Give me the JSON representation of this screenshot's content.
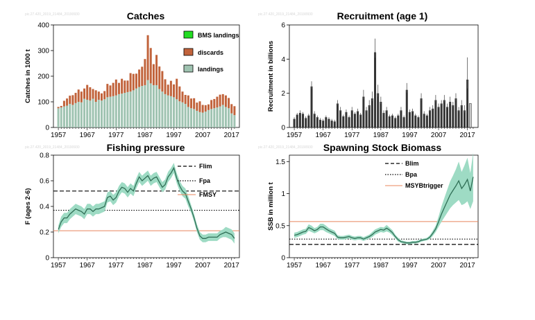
{
  "colors": {
    "landings": "#9fc3b1",
    "discards": "#c1633b",
    "bms": "#22dd22",
    "recruitment": "#333333",
    "band": "#9edbc4",
    "line": "#2f6e55",
    "msy": "#e8845b"
  },
  "watermarks": [
    "pic.27.420_2019_21484_20190930",
    "pic.27.420_2019_21484_20190930",
    "pic.27.420_2019_21484_20190930",
    "pic.27.420_2019_21484_20190930"
  ],
  "chart_data": [
    {
      "id": "catches",
      "type": "bar",
      "stacked": true,
      "title": "Catches",
      "ylabel": "Catches in 1000 t",
      "xlabel": "",
      "ylim": [
        0,
        400
      ],
      "yticks": [
        0,
        100,
        200,
        300,
        400
      ],
      "xticks": [
        1957,
        1967,
        1977,
        1987,
        1997,
        2007,
        2017
      ],
      "x_start": 1957,
      "x_end": 2018,
      "legend_position": "top-right",
      "series": [
        {
          "name": "BMS landings",
          "color_key": "bms",
          "values": [
            0,
            0,
            0,
            0,
            0,
            0,
            0,
            0,
            0,
            0,
            0,
            0,
            0,
            0,
            0,
            0,
            0,
            0,
            0,
            0,
            0,
            0,
            0,
            0,
            0,
            0,
            0,
            0,
            0,
            0,
            0,
            0,
            0,
            0,
            0,
            0,
            0,
            0,
            0,
            0,
            0,
            0,
            0,
            0,
            0,
            0,
            0,
            0,
            0,
            0,
            0,
            0,
            0,
            0,
            0,
            0,
            0,
            0,
            0,
            0,
            0,
            0
          ]
        },
        {
          "name": "discards",
          "color_key": "discards",
          "values": [
            5,
            6,
            22,
            28,
            32,
            38,
            40,
            48,
            42,
            40,
            58,
            52,
            38,
            45,
            32,
            28,
            32,
            52,
            44,
            52,
            62,
            44,
            58,
            48,
            45,
            72,
            64,
            58,
            68,
            75,
            102,
            175,
            138,
            82,
            118,
            88,
            80,
            58,
            42,
            60,
            50,
            80,
            58,
            42,
            35,
            45,
            38,
            42,
            32,
            42,
            30,
            25,
            22,
            35,
            36,
            42,
            46,
            42,
            45,
            40,
            36,
            35
          ]
        },
        {
          "name": "landings",
          "color_key": "landings",
          "values": [
            75,
            78,
            82,
            85,
            92,
            88,
            95,
            100,
            98,
            112,
            108,
            105,
            112,
            100,
            108,
            105,
            110,
            118,
            120,
            122,
            125,
            130,
            132,
            135,
            138,
            140,
            145,
            152,
            158,
            162,
            165,
            185,
            172,
            165,
            165,
            150,
            140,
            130,
            125,
            122,
            118,
            110,
            102,
            98,
            92,
            80,
            75,
            72,
            65,
            60,
            58,
            62,
            68,
            72,
            75,
            78,
            82,
            88,
            80,
            75,
            55,
            48
          ]
        }
      ]
    },
    {
      "id": "recruitment",
      "type": "bar",
      "title": "Recruitment (age 1)",
      "ylabel": "Recruitment in billions",
      "xlabel": "",
      "ylim": [
        0,
        6
      ],
      "yticks": [
        0,
        2,
        4,
        6
      ],
      "xticks": [
        1957,
        1967,
        1977,
        1987,
        1997,
        2007,
        2017
      ],
      "x_start": 1957,
      "x_end": 2019,
      "last_bar_light": true,
      "values": [
        0.5,
        0.75,
        0.85,
        0.8,
        0.55,
        0.7,
        2.4,
        0.8,
        0.6,
        0.45,
        0.4,
        0.6,
        0.5,
        0.4,
        0.35,
        1.4,
        1.0,
        0.65,
        0.9,
        0.6,
        1.0,
        0.8,
        0.95,
        0.75,
        1.8,
        1.0,
        1.3,
        1.7,
        4.4,
        2.0,
        1.5,
        0.85,
        1.0,
        0.65,
        0.7,
        0.55,
        0.7,
        1.0,
        0.6,
        2.2,
        0.9,
        0.95,
        0.7,
        0.6,
        1.7,
        0.8,
        0.7,
        1.0,
        1.1,
        1.6,
        1.2,
        1.4,
        1.6,
        1.2,
        1.5,
        1.3,
        1.7,
        1.0,
        1.3,
        1.0,
        2.8,
        1.4
      ],
      "errors": [
        0.1,
        0.1,
        0.15,
        0.1,
        0.1,
        0.1,
        0.3,
        0.15,
        0.1,
        0.1,
        0.1,
        0.1,
        0.1,
        0.1,
        0.1,
        0.2,
        0.2,
        0.1,
        0.15,
        0.1,
        0.2,
        0.1,
        0.15,
        0.1,
        0.4,
        0.2,
        0.3,
        0.4,
        0.8,
        0.5,
        0.3,
        0.15,
        0.2,
        0.1,
        0.1,
        0.1,
        0.1,
        0.2,
        0.1,
        0.4,
        0.15,
        0.15,
        0.1,
        0.1,
        0.3,
        0.15,
        0.1,
        0.2,
        0.2,
        0.3,
        0.2,
        0.2,
        0.3,
        0.2,
        0.3,
        0.2,
        0.3,
        0.2,
        0.3,
        0.3,
        1.3,
        0
      ]
    },
    {
      "id": "fishing_pressure",
      "type": "line",
      "title": "Fishing pressure",
      "ylabel": "F (ages 2-6)",
      "xlabel": "",
      "ylim": [
        0,
        0.8
      ],
      "yticks": [
        0,
        0.2,
        0.4,
        0.6,
        0.8
      ],
      "xticks": [
        1957,
        1967,
        1977,
        1987,
        1997,
        2007,
        2017
      ],
      "x_start": 1957,
      "x_end": 2018,
      "legend_position": "top-right",
      "reference_lines": [
        {
          "name": "Flim",
          "value": 0.52,
          "style": "dashed"
        },
        {
          "name": "Fpa",
          "value": 0.37,
          "style": "dotted"
        },
        {
          "name": "FMSY",
          "value": 0.21,
          "style": "solid"
        }
      ],
      "values": [
        0.22,
        0.28,
        0.31,
        0.31,
        0.34,
        0.36,
        0.38,
        0.37,
        0.36,
        0.34,
        0.38,
        0.38,
        0.36,
        0.38,
        0.38,
        0.39,
        0.4,
        0.47,
        0.48,
        0.45,
        0.47,
        0.52,
        0.55,
        0.54,
        0.51,
        0.54,
        0.52,
        0.58,
        0.63,
        0.6,
        0.62,
        0.64,
        0.6,
        0.62,
        0.63,
        0.59,
        0.55,
        0.57,
        0.63,
        0.66,
        0.7,
        0.62,
        0.56,
        0.52,
        0.5,
        0.44,
        0.38,
        0.31,
        0.23,
        0.17,
        0.15,
        0.15,
        0.16,
        0.16,
        0.16,
        0.16,
        0.18,
        0.19,
        0.2,
        0.19,
        0.18,
        0.15
      ],
      "band_lower": [
        0.19,
        0.24,
        0.27,
        0.27,
        0.3,
        0.32,
        0.34,
        0.33,
        0.32,
        0.3,
        0.34,
        0.34,
        0.32,
        0.34,
        0.34,
        0.35,
        0.36,
        0.43,
        0.44,
        0.41,
        0.43,
        0.48,
        0.51,
        0.5,
        0.47,
        0.5,
        0.48,
        0.54,
        0.59,
        0.56,
        0.58,
        0.6,
        0.56,
        0.58,
        0.59,
        0.55,
        0.51,
        0.53,
        0.59,
        0.62,
        0.66,
        0.58,
        0.52,
        0.48,
        0.46,
        0.4,
        0.35,
        0.28,
        0.2,
        0.14,
        0.12,
        0.12,
        0.13,
        0.13,
        0.13,
        0.13,
        0.15,
        0.16,
        0.16,
        0.15,
        0.14,
        0.11
      ],
      "band_upper": [
        0.25,
        0.32,
        0.35,
        0.35,
        0.38,
        0.4,
        0.42,
        0.41,
        0.4,
        0.38,
        0.42,
        0.42,
        0.4,
        0.42,
        0.42,
        0.43,
        0.44,
        0.51,
        0.52,
        0.49,
        0.51,
        0.56,
        0.59,
        0.58,
        0.55,
        0.58,
        0.56,
        0.62,
        0.67,
        0.64,
        0.66,
        0.68,
        0.64,
        0.66,
        0.67,
        0.63,
        0.59,
        0.61,
        0.67,
        0.7,
        0.74,
        0.66,
        0.6,
        0.56,
        0.54,
        0.48,
        0.41,
        0.34,
        0.26,
        0.2,
        0.18,
        0.18,
        0.19,
        0.19,
        0.19,
        0.19,
        0.21,
        0.22,
        0.24,
        0.23,
        0.22,
        0.19
      ]
    },
    {
      "id": "ssb",
      "type": "line",
      "title": "Spawning Stock Biomass",
      "ylabel": "SSB in million t",
      "xlabel": "",
      "ylim": [
        0,
        1.6
      ],
      "yticks": [
        0,
        0.5,
        1,
        1.5
      ],
      "xticks": [
        1957,
        1967,
        1977,
        1987,
        1997,
        2007,
        2017
      ],
      "x_start": 1957,
      "x_end": 2019,
      "legend_position": "top-left",
      "reference_lines": [
        {
          "name": "Blim",
          "value": 0.207,
          "style": "dashed"
        },
        {
          "name": "Bpa",
          "value": 0.29,
          "style": "dotted"
        },
        {
          "name": "MSYBtrigger",
          "value": 0.564,
          "style": "solid"
        }
      ],
      "values": [
        0.35,
        0.36,
        0.38,
        0.4,
        0.41,
        0.47,
        0.45,
        0.42,
        0.44,
        0.48,
        0.48,
        0.45,
        0.42,
        0.4,
        0.38,
        0.32,
        0.31,
        0.31,
        0.32,
        0.33,
        0.31,
        0.3,
        0.31,
        0.31,
        0.29,
        0.31,
        0.33,
        0.36,
        0.4,
        0.42,
        0.44,
        0.43,
        0.46,
        0.43,
        0.39,
        0.33,
        0.28,
        0.25,
        0.24,
        0.23,
        0.23,
        0.24,
        0.24,
        0.25,
        0.27,
        0.28,
        0.29,
        0.32,
        0.38,
        0.45,
        0.56,
        0.68,
        0.78,
        0.88,
        0.98,
        1.05,
        1.12,
        1.2,
        1.08,
        1.14,
        1.22,
        1.04,
        1.26
      ],
      "band_lower": [
        0.31,
        0.32,
        0.34,
        0.36,
        0.37,
        0.42,
        0.4,
        0.38,
        0.4,
        0.43,
        0.43,
        0.4,
        0.38,
        0.36,
        0.34,
        0.29,
        0.28,
        0.28,
        0.29,
        0.3,
        0.28,
        0.27,
        0.28,
        0.28,
        0.26,
        0.28,
        0.3,
        0.32,
        0.36,
        0.38,
        0.4,
        0.39,
        0.41,
        0.39,
        0.35,
        0.3,
        0.25,
        0.23,
        0.22,
        0.21,
        0.21,
        0.22,
        0.22,
        0.23,
        0.25,
        0.26,
        0.27,
        0.29,
        0.34,
        0.4,
        0.48,
        0.56,
        0.63,
        0.7,
        0.77,
        0.82,
        0.86,
        0.9,
        0.82,
        0.84,
        0.88,
        0.76,
        0.88
      ],
      "band_upper": [
        0.39,
        0.4,
        0.42,
        0.44,
        0.45,
        0.52,
        0.5,
        0.46,
        0.48,
        0.53,
        0.53,
        0.5,
        0.46,
        0.44,
        0.42,
        0.35,
        0.34,
        0.34,
        0.35,
        0.36,
        0.34,
        0.33,
        0.34,
        0.34,
        0.32,
        0.34,
        0.36,
        0.4,
        0.44,
        0.46,
        0.48,
        0.47,
        0.51,
        0.47,
        0.43,
        0.36,
        0.31,
        0.27,
        0.26,
        0.25,
        0.25,
        0.26,
        0.26,
        0.27,
        0.29,
        0.3,
        0.31,
        0.35,
        0.42,
        0.5,
        0.64,
        0.8,
        0.93,
        1.06,
        1.19,
        1.28,
        1.38,
        1.5,
        1.34,
        1.44,
        1.56,
        1.32,
        1.64
      ]
    }
  ]
}
